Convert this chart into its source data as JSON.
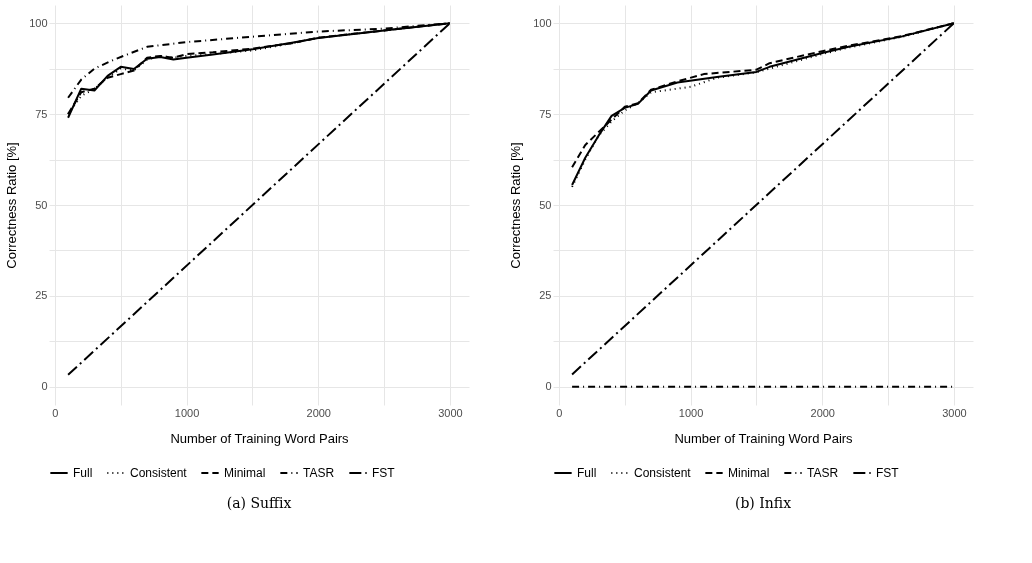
{
  "chart_data": [
    {
      "type": "line",
      "title": "(a) Suffix",
      "xlabel": "Number of Training Word Pairs",
      "ylabel": "Correctness Ratio [%]",
      "xlim": [
        -45,
        3145
      ],
      "ylim": [
        -5,
        105
      ],
      "xticks": [
        0,
        {
          "value": 500,
          "label": null
        },
        1000,
        {
          "value": 1500,
          "label": null
        },
        2000,
        {
          "value": 2500,
          "label": null
        },
        3000
      ],
      "yticks": [
        0,
        {
          "value": 12.5,
          "label": null
        },
        25,
        {
          "value": 37.5,
          "label": null
        },
        50,
        {
          "value": 62.5,
          "label": null
        },
        75,
        {
          "value": 87.5,
          "label": null
        },
        100
      ],
      "grid": true,
      "legend": "bottom",
      "series": [
        {
          "name": "Full",
          "color": "#000000",
          "line_style": "solid",
          "x": [
            100,
            200,
            300,
            400,
            500,
            600,
            700,
            800,
            900,
            1000,
            1200,
            1500,
            1800,
            2000,
            2500,
            3000
          ],
          "values": [
            74,
            82,
            81.5,
            85.5,
            88,
            87.4,
            90.2,
            90.7,
            90,
            90.5,
            91.4,
            92.8,
            94.6,
            95.9,
            98,
            100
          ]
        },
        {
          "name": "Consistent",
          "color": "#000000",
          "line_style": "dotted",
          "x": [
            100,
            200,
            300,
            400,
            500,
            600,
            700,
            800,
            900,
            1000,
            1200,
            1500,
            1800,
            2000,
            2500,
            3000
          ],
          "values": [
            75,
            80,
            82,
            85,
            87.5,
            87,
            90,
            91,
            90.5,
            91,
            91.5,
            92.5,
            94.5,
            96,
            98,
            100
          ]
        },
        {
          "name": "Minimal",
          "color": "#000000",
          "line_style": "dashed",
          "x": [
            100,
            200,
            300,
            400,
            500,
            600,
            700,
            800,
            900,
            1000,
            1200,
            1500,
            1800,
            2000,
            2500,
            3000
          ],
          "values": [
            75,
            81,
            82,
            85,
            86,
            87,
            90.5,
            91,
            90.5,
            91.5,
            92,
            93,
            94.5,
            96,
            98,
            100
          ]
        },
        {
          "name": "TASR",
          "color": "#000000",
          "line_style": "dashdot",
          "x": [
            100,
            200,
            300,
            450,
            700,
            1000,
            1400,
            2000,
            2500,
            3000
          ],
          "values": [
            79.5,
            84.5,
            87.5,
            90,
            93.5,
            94.8,
            96,
            97.7,
            98.5,
            100
          ]
        },
        {
          "name": "FST",
          "color": "#000000",
          "line_style": "longdashdot",
          "x": [
            100,
            3000
          ],
          "values": [
            3.3,
            100
          ]
        }
      ]
    },
    {
      "type": "line",
      "title": "(b) Infix",
      "xlabel": "Number of Training Word Pairs",
      "ylabel": "Correctness Ratio [%]",
      "xlim": [
        -45,
        3145
      ],
      "ylim": [
        -5,
        105
      ],
      "xticks": [
        0,
        {
          "value": 500,
          "label": null
        },
        1000,
        {
          "value": 1500,
          "label": null
        },
        2000,
        {
          "value": 2500,
          "label": null
        },
        3000
      ],
      "yticks": [
        0,
        {
          "value": 12.5,
          "label": null
        },
        25,
        {
          "value": 37.5,
          "label": null
        },
        50,
        {
          "value": 62.5,
          "label": null
        },
        75,
        {
          "value": 87.5,
          "label": null
        },
        100
      ],
      "grid": true,
      "legend": "bottom",
      "series": [
        {
          "name": "Full",
          "color": "#000000",
          "line_style": "solid",
          "x": [
            100,
            200,
            300,
            400,
            500,
            600,
            700,
            900,
            1200,
            1500,
            1600,
            2000,
            2200,
            2600,
            3000
          ],
          "values": [
            55.5,
            63,
            69,
            74.5,
            76.7,
            77.8,
            81.5,
            83.7,
            85.2,
            86.6,
            88,
            91.8,
            93.5,
            96.3,
            100
          ]
        },
        {
          "name": "Consistent",
          "color": "#000000",
          "line_style": "dotted",
          "x": [
            100,
            200,
            300,
            400,
            500,
            600,
            700,
            800,
            1000,
            1200,
            1500,
            1600,
            2000,
            2200,
            2600,
            3000
          ],
          "values": [
            55,
            62.5,
            69,
            73,
            76,
            78,
            81,
            81.5,
            82.5,
            85,
            86.5,
            87.5,
            91.5,
            93.3,
            96.2,
            100
          ]
        },
        {
          "name": "Minimal",
          "color": "#000000",
          "line_style": "dashed",
          "x": [
            100,
            200,
            300,
            400,
            500,
            600,
            700,
            900,
            1100,
            1500,
            1600,
            2000,
            2200,
            2600,
            3000
          ],
          "values": [
            60.4,
            66.5,
            70,
            73.5,
            77,
            78,
            81.7,
            84,
            86,
            87.2,
            89,
            92.3,
            93.8,
            96.4,
            100
          ]
        },
        {
          "name": "TASR",
          "color": "#000000",
          "line_style": "dashdot",
          "x": [
            100,
            3000
          ],
          "values": [
            0,
            0
          ]
        },
        {
          "name": "FST",
          "color": "#000000",
          "line_style": "longdashdot",
          "x": [
            100,
            3000
          ],
          "values": [
            3.4,
            100
          ]
        }
      ]
    }
  ]
}
